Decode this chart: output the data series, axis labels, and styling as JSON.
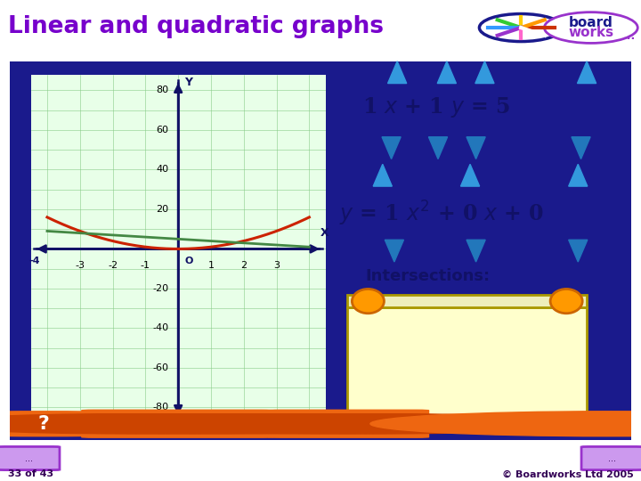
{
  "title": "Linear and quadratic graphs",
  "title_color": "#7700cc",
  "bg_outer": "#ffffff",
  "bg_panel": "#1a1a8c",
  "bg_inner": "#ffffff",
  "graph_bg": "#e8ffe8",
  "grid_color": "#88cc88",
  "x_range": [
    -4,
    4
  ],
  "y_range": [
    -80,
    80
  ],
  "x_ticks": [
    -3,
    -2,
    -1,
    1,
    2,
    3
  ],
  "y_ticks": [
    -80,
    -60,
    -40,
    -20,
    20,
    40,
    60,
    80
  ],
  "linear_color": "#448844",
  "quadratic_color": "#cc2200",
  "arrow_color": "#111166",
  "triangle_up_color": "#3399dd",
  "triangle_down_color": "#2277bb",
  "eq_color": "#111166",
  "intersections_label": "Intersections:",
  "footer_left": "33 of 43",
  "footer_right": "© Boardworks Ltd 2005",
  "footer_bg": "#aa77cc",
  "toolbar_bg": "#1a1a8c",
  "orange_btn": "#ee6611",
  "paper_bg": "#ffffcc",
  "paper_edge": "#aa9900",
  "tack_color": "#ff9900",
  "tack_edge": "#cc6600"
}
